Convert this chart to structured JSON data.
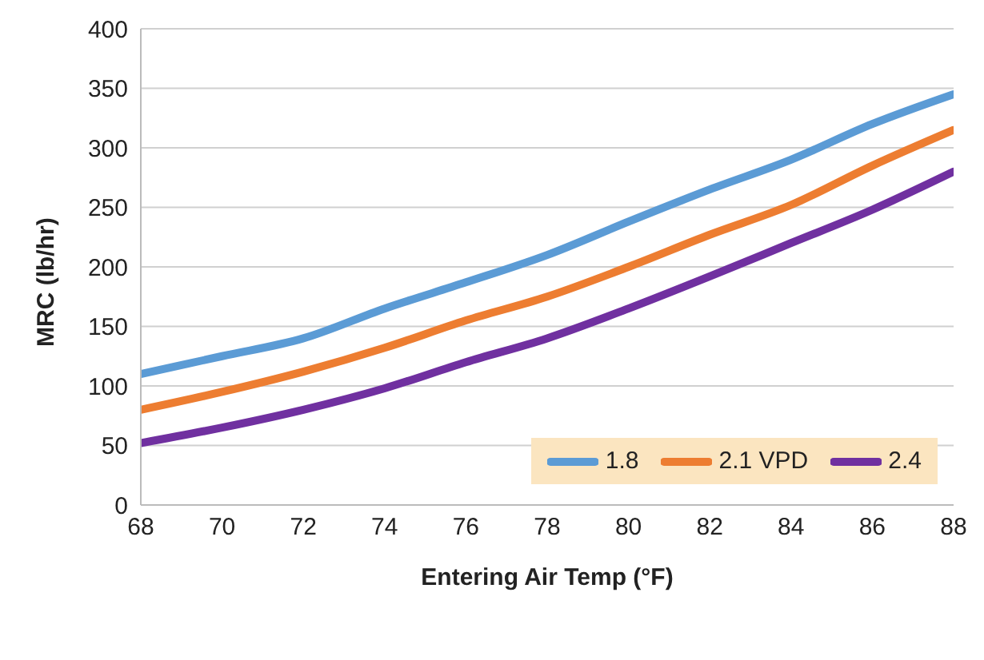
{
  "chart_data": {
    "type": "line",
    "xlabel": "Entering Air Temp (°F)",
    "ylabel": "MRC (lb/hr)",
    "x": [
      68,
      70,
      72,
      74,
      76,
      78,
      80,
      82,
      84,
      86,
      88
    ],
    "series": [
      {
        "name": "1.8",
        "color": "#5b9bd5",
        "values": [
          110,
          125,
          140,
          165,
          187,
          210,
          238,
          265,
          290,
          320,
          345
        ]
      },
      {
        "name": "2.1 VPD",
        "color": "#ed7d31",
        "values": [
          80,
          95,
          112,
          132,
          155,
          175,
          200,
          227,
          252,
          285,
          315
        ]
      },
      {
        "name": "2.4",
        "color": "#7030a0",
        "values": [
          52,
          65,
          80,
          98,
          120,
          140,
          165,
          192,
          220,
          248,
          280
        ]
      }
    ],
    "xlim": [
      68,
      88
    ],
    "xticks": [
      68,
      70,
      72,
      74,
      76,
      78,
      80,
      82,
      84,
      86,
      88
    ],
    "ylim": [
      0,
      400
    ],
    "yticks": [
      0,
      50,
      100,
      150,
      200,
      250,
      300,
      350,
      400
    ],
    "grid": "y",
    "legend": "bottom right",
    "marker": "none",
    "line_style": "solid"
  }
}
